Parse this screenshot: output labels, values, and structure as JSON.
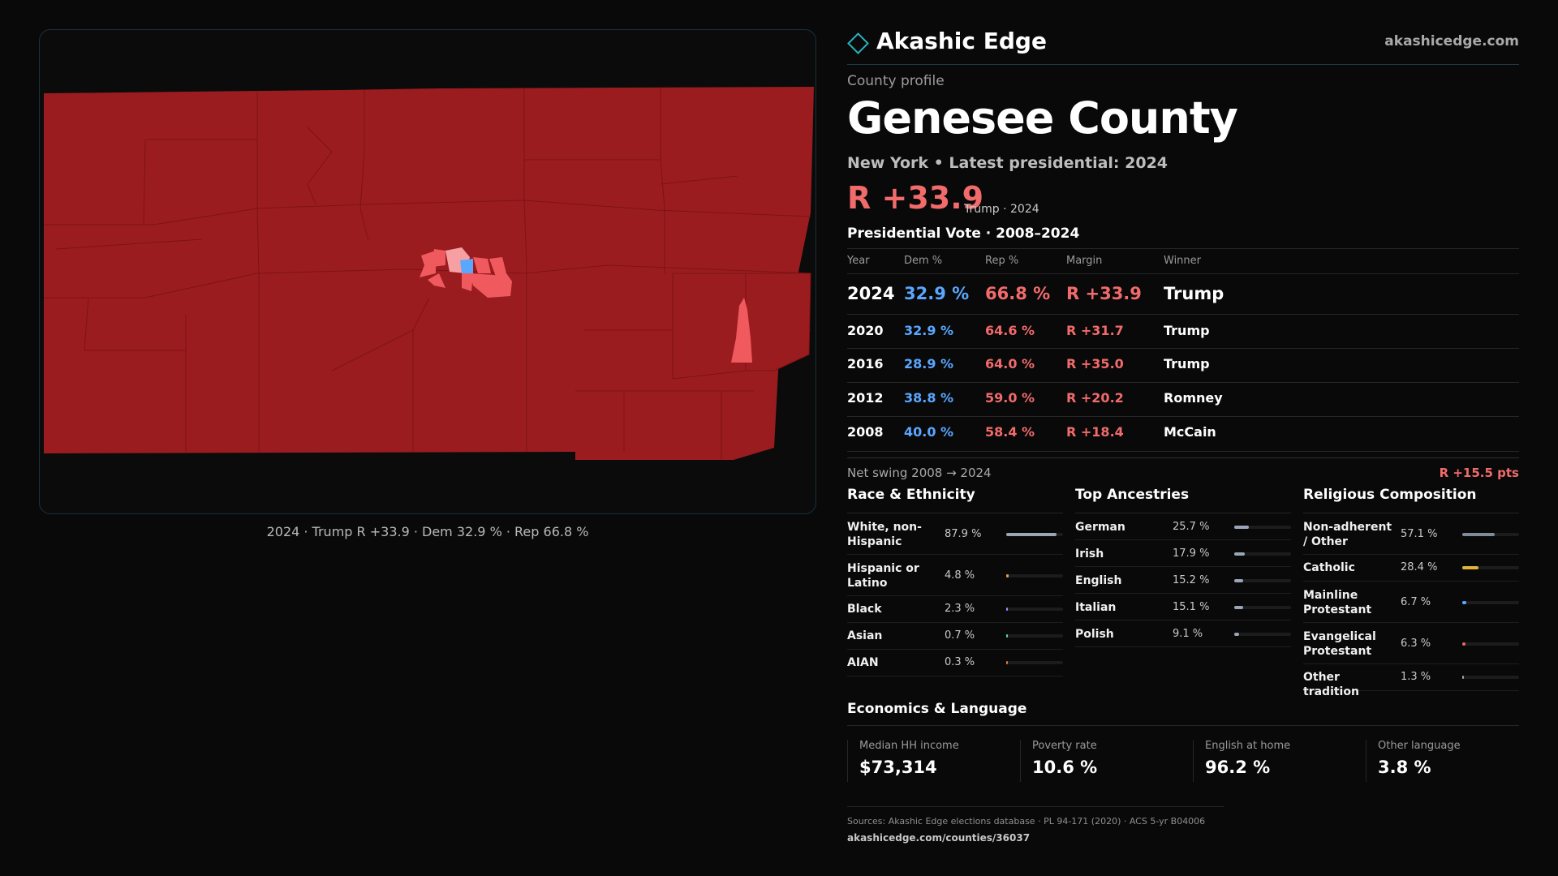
{
  "brand": {
    "name": "Akashic Edge",
    "site": "akashicedge.com"
  },
  "profile": {
    "kicker": "County profile",
    "title": "Genesee County",
    "subtitle": "New York • Latest presidential: 2024",
    "margin": "R +33.9",
    "margin_note": "Trump · 2024"
  },
  "map": {
    "caption": "2024 · Trump R +33.9 · Dem 32.9 % · Rep 66.8 %"
  },
  "vote": {
    "heading": "Presidential Vote · 2008–2024",
    "columns": {
      "year": "Year",
      "dem": "Dem %",
      "rep": "Rep %",
      "margin": "Margin",
      "winner": "Winner"
    },
    "rows": [
      {
        "year": "2024",
        "dem": "32.9 %",
        "rep": "66.8 %",
        "margin": "R +33.9",
        "winner": "Trump"
      },
      {
        "year": "2020",
        "dem": "32.9 %",
        "rep": "64.6 %",
        "margin": "R +31.7",
        "winner": "Trump"
      },
      {
        "year": "2016",
        "dem": "28.9 %",
        "rep": "64.0 %",
        "margin": "R +35.0",
        "winner": "Trump"
      },
      {
        "year": "2012",
        "dem": "38.8 %",
        "rep": "59.0 %",
        "margin": "R +20.2",
        "winner": "Romney"
      },
      {
        "year": "2008",
        "dem": "40.0 %",
        "rep": "58.4 %",
        "margin": "R +18.4",
        "winner": "McCain"
      }
    ],
    "swing_label": "Net swing 2008 → 2024",
    "swing_value": "R +15.5 pts"
  },
  "race": {
    "heading": "Race & Ethnicity",
    "items": [
      {
        "label": "White, non-Hispanic",
        "value": "87.9 %",
        "pct": 87.9,
        "color": "#9aa6b8"
      },
      {
        "label": "Hispanic or Latino",
        "value": "4.8 %",
        "pct": 4.8,
        "color": "#e0a33a"
      },
      {
        "label": "Black",
        "value": "2.3 %",
        "pct": 2.3,
        "color": "#a78bfa"
      },
      {
        "label": "Asian",
        "value": "0.7 %",
        "pct": 0.7,
        "color": "#5fd1c2"
      },
      {
        "label": "AIAN",
        "value": "0.3 %",
        "pct": 0.3,
        "color": "#e07a3a"
      }
    ]
  },
  "ancestry": {
    "heading": "Top Ancestries",
    "items": [
      {
        "label": "German",
        "value": "25.7 %",
        "pct": 25.7,
        "color": "#9aa6b8"
      },
      {
        "label": "Irish",
        "value": "17.9 %",
        "pct": 17.9,
        "color": "#9aa6b8"
      },
      {
        "label": "English",
        "value": "15.2 %",
        "pct": 15.2,
        "color": "#9aa6b8"
      },
      {
        "label": "Italian",
        "value": "15.1 %",
        "pct": 15.1,
        "color": "#9aa6b8"
      },
      {
        "label": "Polish",
        "value": "9.1 %",
        "pct": 9.1,
        "color": "#9aa6b8"
      }
    ]
  },
  "religion": {
    "heading": "Religious Composition",
    "items": [
      {
        "label": "Non-adherent / Other",
        "value": "57.1 %",
        "pct": 57.1,
        "color": "#7f8a9c"
      },
      {
        "label": "Catholic",
        "value": "28.4 %",
        "pct": 28.4,
        "color": "#e0b43a"
      },
      {
        "label": "Mainline Protestant",
        "value": "6.7 %",
        "pct": 6.7,
        "color": "#5aa7ff"
      },
      {
        "label": "Evangelical Protestant",
        "value": "6.3 %",
        "pct": 6.3,
        "color": "#e06b5a"
      },
      {
        "label": "Other tradition",
        "value": "1.3 %",
        "pct": 1.3,
        "color": "#9aa6b8"
      }
    ]
  },
  "economics": {
    "heading": "Economics & Language",
    "items": [
      {
        "label": "Median HH income",
        "value": "$73,314"
      },
      {
        "label": "Poverty rate",
        "value": "10.6 %"
      },
      {
        "label": "English at home",
        "value": "96.2 %"
      },
      {
        "label": "Other language",
        "value": "3.8 %"
      }
    ]
  },
  "sources": {
    "line1": "Sources: Akashic Edge elections database · PL 94-171 (2020) · ACS 5-yr B04006",
    "line2": "akashicedge.com/counties/36037"
  },
  "colors": {
    "rep_strong": "#9b1c1f",
    "rep_light": "#f05a5e",
    "rep_pale": "#f7a0a3",
    "dem": "#5aa7ff"
  }
}
